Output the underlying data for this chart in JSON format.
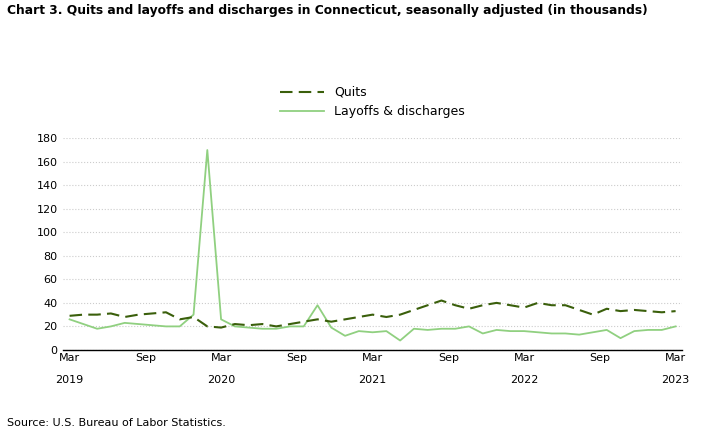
{
  "title": "Chart 3. Quits and layoffs and discharges in Connecticut, seasonally adjusted (in thousands)",
  "source": "Source: U.S. Bureau of Labor Statistics.",
  "quits_color": "#3a5f0b",
  "layoffs_color": "#90d080",
  "ylim": [
    0,
    180
  ],
  "yticks": [
    0,
    20,
    40,
    60,
    80,
    100,
    120,
    140,
    160,
    180
  ],
  "quits": [
    29,
    30,
    30,
    31,
    28,
    30,
    31,
    32,
    26,
    28,
    20,
    19,
    22,
    21,
    22,
    20,
    22,
    24,
    26,
    24,
    26,
    28,
    30,
    28,
    30,
    34,
    38,
    42,
    38,
    35,
    38,
    40,
    38,
    36,
    40,
    38,
    38,
    34,
    30,
    35,
    33,
    34,
    33,
    32,
    33
  ],
  "layoffs": [
    26,
    22,
    18,
    20,
    23,
    22,
    21,
    20,
    20,
    30,
    170,
    26,
    20,
    19,
    18,
    18,
    20,
    20,
    38,
    19,
    12,
    16,
    15,
    16,
    8,
    18,
    17,
    18,
    18,
    20,
    14,
    17,
    16,
    16,
    15,
    14,
    14,
    13,
    15,
    17,
    10,
    16,
    17,
    17,
    20
  ],
  "xtick_positions": [
    0,
    6,
    12,
    18,
    24,
    30,
    36,
    42,
    48
  ],
  "xtick_month_labels": [
    "Mar",
    "Sep",
    "Mar",
    "Sep",
    "Mar",
    "Sep",
    "Mar",
    "Sep",
    "Mar"
  ],
  "year_positions": [
    0,
    12,
    24,
    36,
    48
  ],
  "year_labels": [
    "2019",
    "2020",
    "2021",
    "2022",
    "2023"
  ]
}
